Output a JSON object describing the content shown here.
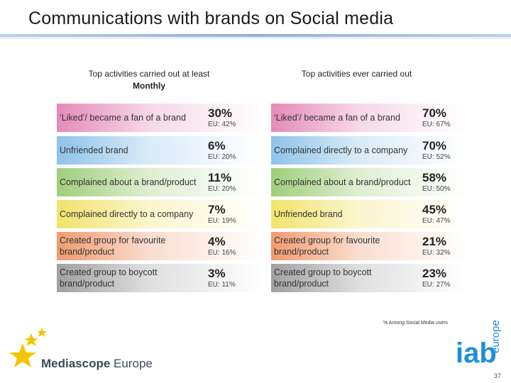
{
  "title": "Communications with brands on Social media",
  "left_column": {
    "header_line1": "Top activities carried out at least",
    "header_line2": "Monthly",
    "rows": [
      {
        "label": "‘Liked’/ became a fan of a brand",
        "pct": "30%",
        "eu": "EU: 42%",
        "color": "#e58ab8"
      },
      {
        "label": "Unfriended brand",
        "pct": "6%",
        "eu": "EU: 20%",
        "color": "#8ec3ea"
      },
      {
        "label": "Complained about a brand/product",
        "pct": "11%",
        "eu": "EU: 20%",
        "color": "#9fce7a"
      },
      {
        "label": "Complained directly to a company",
        "pct": "7%",
        "eu": "EU: 19%",
        "color": "#f2e36c"
      },
      {
        "label": "Created group for favourite brand/product",
        "pct": "4%",
        "eu": "EU: 16%",
        "color": "#f09a6f"
      },
      {
        "label": "Created group to boycott brand/product",
        "pct": "3%",
        "eu": "EU: 11%",
        "color": "#a0a0a0"
      }
    ]
  },
  "right_column": {
    "header_line1": "Top activities ever carried out",
    "rows": [
      {
        "label": "‘Liked’/ became a fan of a brand",
        "pct": "70%",
        "eu": "EU: 67%",
        "color": "#e58ab8"
      },
      {
        "label": "Complained directly to a company",
        "pct": "70%",
        "eu": "EU: 52%",
        "color": "#8ec3ea"
      },
      {
        "label": "Complained about a brand/product",
        "pct": "58%",
        "eu": "EU: 50%",
        "color": "#9fce7a"
      },
      {
        "label": "Unfriended brand",
        "pct": "45%",
        "eu": "EU: 47%",
        "color": "#f2e36c"
      },
      {
        "label": "Created group for favourite brand/product",
        "pct": "21%",
        "eu": "EU: 32%",
        "color": "#f09a6f"
      },
      {
        "label": "Created group to boycott brand/product",
        "pct": "23%",
        "eu": "EU: 27%",
        "color": "#a0a0a0"
      }
    ]
  },
  "footnote": "% Among Social Media users",
  "logo_left": {
    "bold": "Mediascope",
    "regular": " Europe"
  },
  "logo_right": {
    "main": "iab",
    "sub": "europe"
  },
  "page_number": "37",
  "colors": {
    "accent_blue": "#1f8ed6",
    "star_yellow": "#f5c400"
  }
}
